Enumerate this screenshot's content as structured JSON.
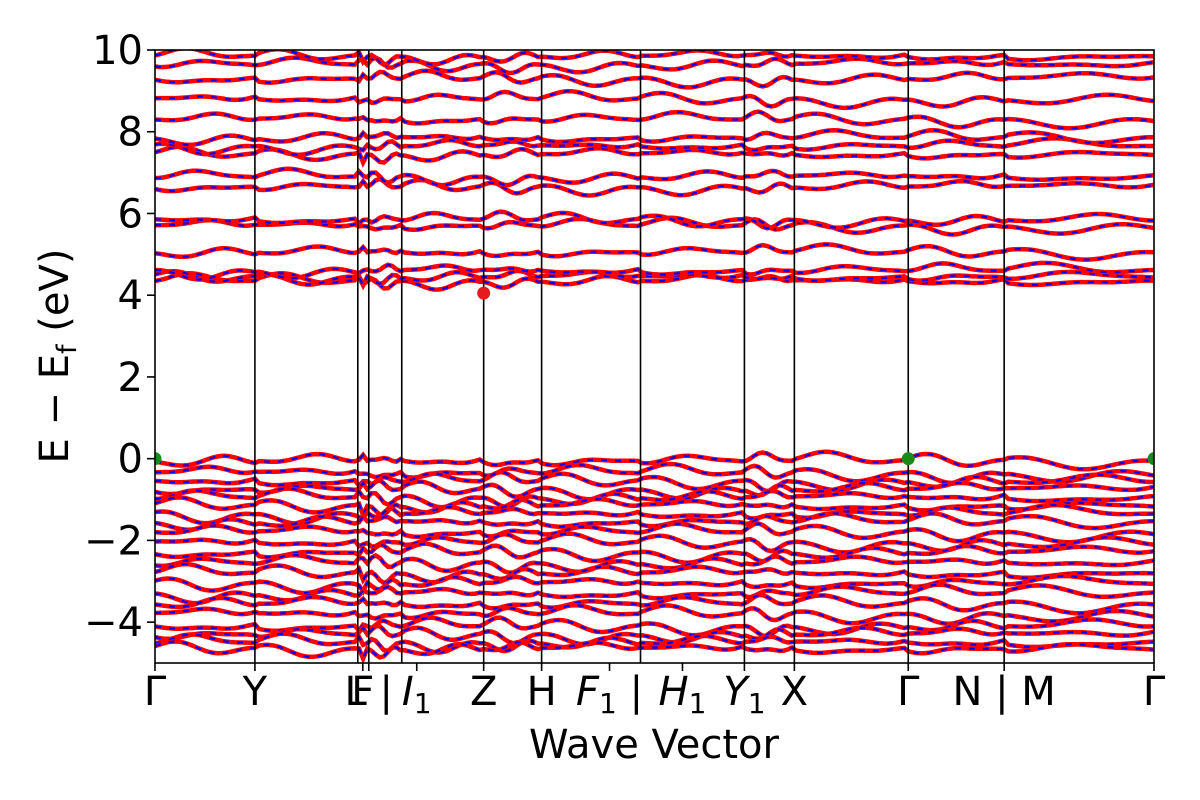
{
  "chart_data": {
    "type": "line",
    "title": "",
    "xlabel": "Wave Vector",
    "ylabel": "E − E",
    "ylabel_sub": "f",
    "ylabel_unit": " (eV)",
    "ylim": [
      -5,
      10
    ],
    "yticks": [
      -4,
      -2,
      0,
      2,
      4,
      6,
      8,
      10
    ],
    "ytick_labels": [
      "−4",
      "−2",
      "0",
      "2",
      "4",
      "6",
      "8",
      "10"
    ],
    "xlim": [
      0,
      1
    ],
    "grid": false,
    "colors": {
      "spin_up": "#ff0000",
      "spin_down": "#0000ff",
      "cbm_marker": "#e41a1c",
      "vbm_marker": "#1a8a1a"
    },
    "high_symmetry_points": [
      {
        "x": 0.0,
        "label": "Γ"
      },
      {
        "x": 0.1,
        "label": "Y"
      },
      {
        "x": 0.203,
        "label": ""
      },
      {
        "x": 0.214,
        "label": "F"
      },
      {
        "x": 0.207,
        "label": "L | "
      },
      {
        "x": 0.247,
        "label": "I"
      },
      {
        "x": 0.329,
        "label": "Z"
      },
      {
        "x": 0.387,
        "label": "H"
      },
      {
        "x": 0.45,
        "label": "F"
      },
      {
        "x": 0.486,
        "label": ""
      },
      {
        "x": 0.514,
        "label": "H"
      },
      {
        "x": 0.59,
        "label": "Y"
      },
      {
        "x": 0.64,
        "label": "X"
      },
      {
        "x": 0.754,
        "label": "Γ"
      },
      {
        "x": 0.85,
        "label": "N | M"
      },
      {
        "x": 1.0,
        "label": "Γ"
      }
    ],
    "vertical_lines_x": [
      0.1,
      0.203,
      0.214,
      0.247,
      0.329,
      0.387,
      0.486,
      0.59,
      0.64,
      0.754,
      0.85
    ],
    "tick_label_positions": [
      {
        "x": 0.0,
        "label": "Γ"
      },
      {
        "x": 0.1,
        "label": "Y"
      },
      {
        "x": 0.208,
        "label": "F"
      },
      {
        "x": 0.214,
        "label": "L | "
      },
      {
        "x": 0.262,
        "label": "I",
        "sub": "1"
      },
      {
        "x": 0.329,
        "label": "Z"
      },
      {
        "x": 0.387,
        "label": "H"
      },
      {
        "x": 0.455,
        "label": "F",
        "sub": "1",
        "suffix": " | "
      },
      {
        "x": 0.528,
        "label": "H",
        "sub": "1"
      },
      {
        "x": 0.59,
        "label": "Y",
        "sub": "1"
      },
      {
        "x": 0.64,
        "label": "X"
      },
      {
        "x": 0.754,
        "label": "Γ"
      },
      {
        "x": 0.85,
        "label": "N | M"
      },
      {
        "x": 1.0,
        "label": "Γ"
      }
    ],
    "markers": [
      {
        "name": "CBM",
        "x": 0.329,
        "y": 4.05,
        "color": "#e41a1c"
      },
      {
        "name": "VBM",
        "x": 0.0,
        "y": 0.0,
        "color": "#1a8a1a"
      },
      {
        "name": "VBM",
        "x": 0.754,
        "y": 0.0,
        "color": "#1a8a1a"
      },
      {
        "name": "VBM",
        "x": 1.0,
        "y": 0.0,
        "color": "#1a8a1a"
      }
    ],
    "conduction_band_levels": [
      4.35,
      4.45,
      4.6,
      5.05,
      5.7,
      5.85,
      6.65,
      6.9,
      7.45,
      7.65,
      7.85,
      8.3,
      8.8,
      9.3,
      9.65,
      9.85
    ],
    "valence_band_levels": [
      -0.05,
      -0.35,
      -0.55,
      -0.75,
      -0.95,
      -1.15,
      -1.35,
      -1.55,
      -1.8,
      -2.05,
      -2.3,
      -2.55,
      -2.8,
      -3.05,
      -3.3,
      -3.55,
      -3.8,
      -4.1,
      -4.3,
      -4.5,
      -4.65
    ]
  }
}
